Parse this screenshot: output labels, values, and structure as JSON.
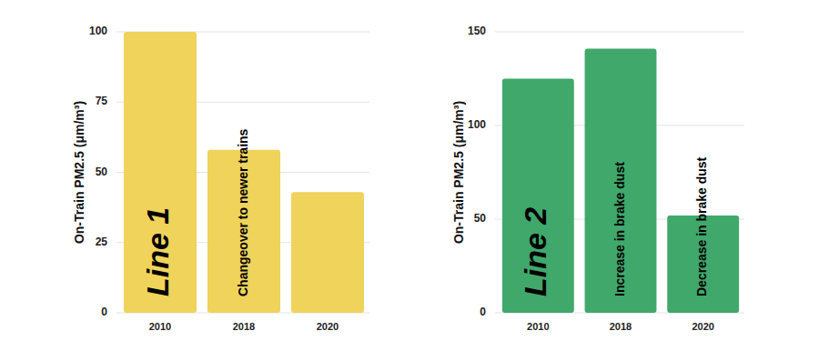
{
  "chart_data": [
    {
      "type": "bar",
      "title": "Line 1",
      "y_label": "On-Train PM2.5 (μm/m³)",
      "categories": [
        "2010",
        "2018",
        "2020"
      ],
      "values": [
        100,
        58,
        43
      ],
      "bar_texts": [
        null,
        "Changeover to newer trains",
        null
      ],
      "color": "#efd35b",
      "ylim": [
        0,
        100
      ],
      "yticks": [
        0,
        25,
        50,
        75,
        100
      ],
      "grid": true
    },
    {
      "type": "bar",
      "title": "Line 2",
      "y_label": "On-Train PM2.5 (μm/m³)",
      "categories": [
        "2010",
        "2018",
        "2020"
      ],
      "values": [
        125,
        141,
        52
      ],
      "bar_texts": [
        null,
        "Increase in brake dust",
        "Decrease in brake dust"
      ],
      "color": "#40a86b",
      "ylim": [
        0,
        150
      ],
      "yticks": [
        0,
        50,
        100,
        150
      ],
      "grid": true
    }
  ]
}
